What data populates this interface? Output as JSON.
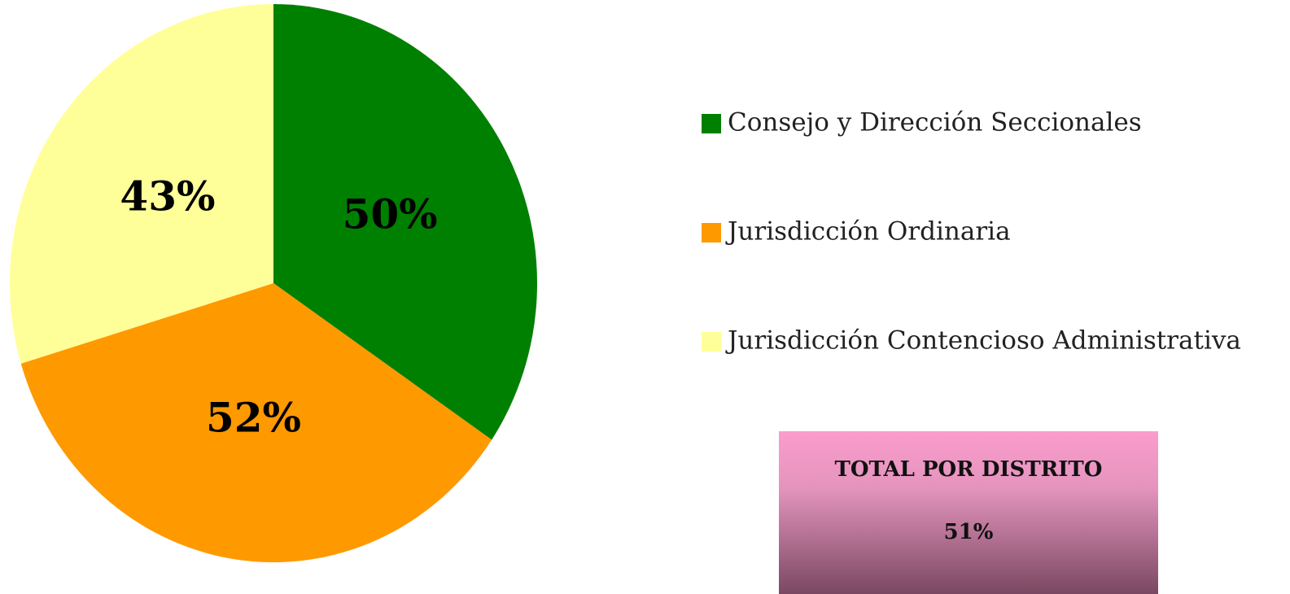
{
  "chart_data": {
    "type": "pie",
    "categories": [
      "Consejo y Dirección Seccionales",
      "Jurisdicción Ordinaria",
      "Jurisdicción Contencioso Administrativa"
    ],
    "values": [
      50,
      52,
      43
    ],
    "value_labels": [
      "50%",
      "52%",
      "43%"
    ],
    "colors": [
      "#008000",
      "#ff9900",
      "#ffff99"
    ],
    "summary": {
      "title": "TOTAL POR DISTRITO",
      "value": 51,
      "value_label": "51%"
    }
  }
}
